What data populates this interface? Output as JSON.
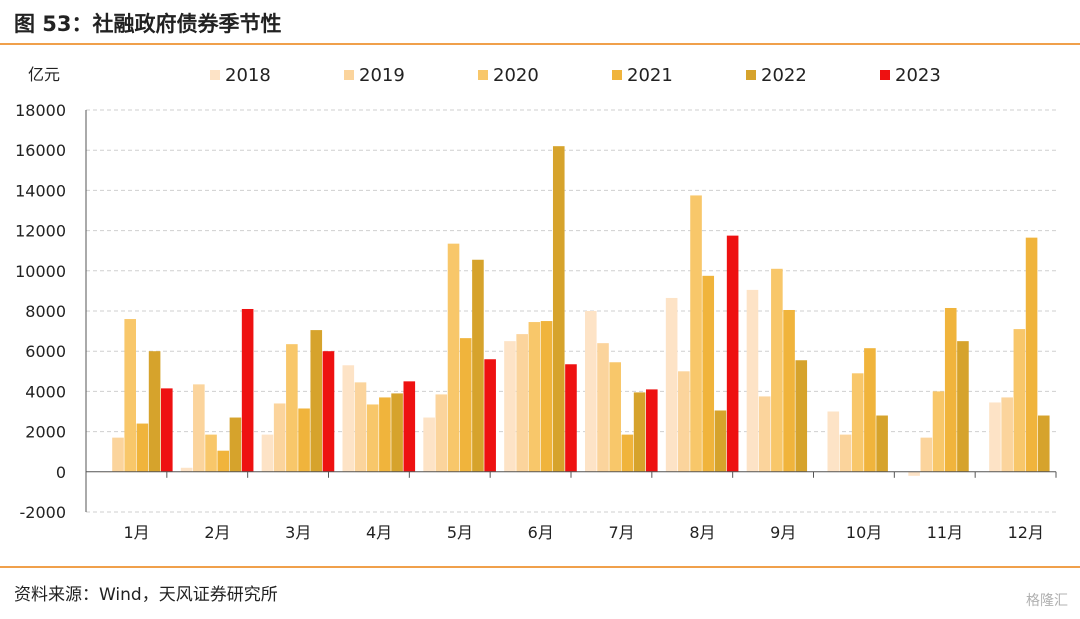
{
  "figure": {
    "title": "图 53：社融政府债券季节性",
    "source": "资料来源：Wind，天风证券研究所",
    "watermark": "格隆汇"
  },
  "chart_data": {
    "type": "bar",
    "unit_label": "亿元",
    "categories": [
      "1月",
      "2月",
      "3月",
      "4月",
      "5月",
      "6月",
      "7月",
      "8月",
      "9月",
      "10月",
      "11月",
      "12月"
    ],
    "series": [
      {
        "name": "2018",
        "color": "#fde3c6",
        "values": [
          0,
          200,
          1850,
          5300,
          2700,
          6500,
          8000,
          8650,
          9050,
          3000,
          -200,
          3450
        ]
      },
      {
        "name": "2019",
        "color": "#fbd49c",
        "values": [
          1700,
          4350,
          3400,
          4450,
          3850,
          6850,
          6400,
          5000,
          3750,
          1850,
          1700,
          3700
        ]
      },
      {
        "name": "2020",
        "color": "#f8c76a",
        "values": [
          7600,
          1850,
          6350,
          3350,
          11350,
          7450,
          5450,
          13750,
          10100,
          4900,
          4000,
          7100
        ]
      },
      {
        "name": "2021",
        "color": "#f0b43c",
        "values": [
          2400,
          1050,
          3150,
          3700,
          6650,
          7500,
          1850,
          9750,
          8050,
          6150,
          8150,
          11650
        ]
      },
      {
        "name": "2022",
        "color": "#d6a32c",
        "values": [
          6000,
          2700,
          7050,
          3900,
          10550,
          16200,
          3950,
          3050,
          5550,
          2800,
          6500,
          2800
        ]
      },
      {
        "name": "2023",
        "color": "#ee1111",
        "values": [
          4150,
          8100,
          6000,
          4500,
          5600,
          5350,
          4100,
          11750,
          null,
          null,
          null,
          null
        ]
      }
    ],
    "ylim": [
      -2000,
      18000
    ],
    "yticks": [
      -2000,
      0,
      2000,
      4000,
      6000,
      8000,
      10000,
      12000,
      14000,
      16000,
      18000
    ],
    "grid": true,
    "legend_position": "top"
  }
}
